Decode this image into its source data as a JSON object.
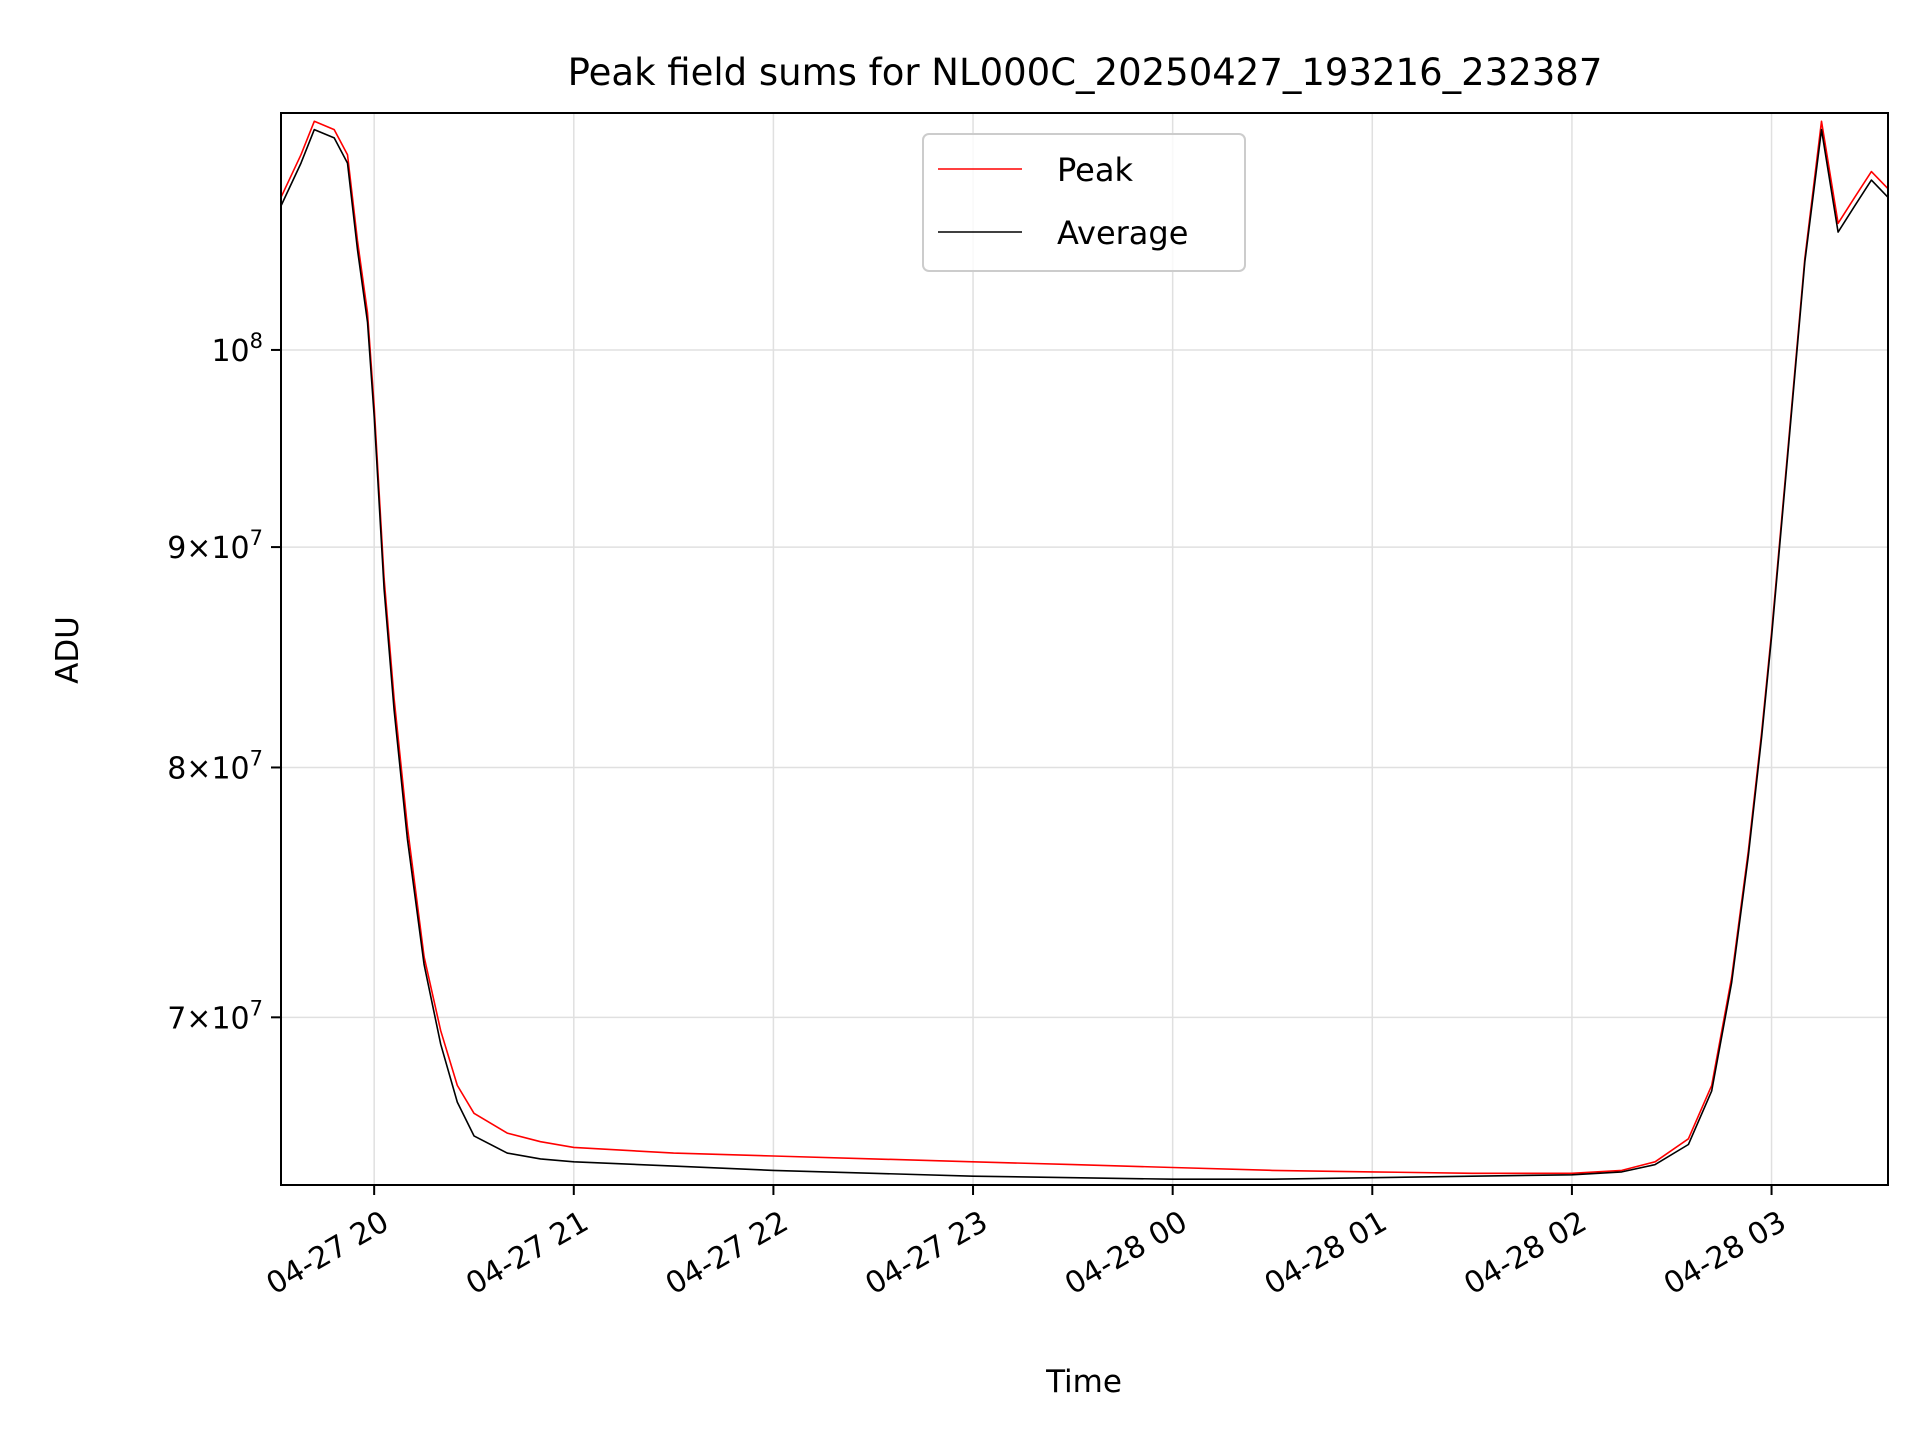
{
  "chart_data": {
    "type": "line",
    "title": "Peak field sums for NL000C_20250427_193216_232387",
    "xlabel": "Time",
    "ylabel": "ADU",
    "y_scale": "log",
    "xlim": [
      "2025-04-27 19:32",
      "2025-04-28 03:35"
    ],
    "ylim": [
      64000000,
      113500000
    ],
    "grid": true,
    "legend_position": "top-center",
    "x_tick_labels": [
      "04-27 20",
      "04-27 21",
      "04-27 22",
      "04-27 23",
      "04-28 00",
      "04-28 01",
      "04-28 02",
      "04-28 03"
    ],
    "x_ticks": [
      "2025-04-27 20:00",
      "2025-04-27 21:00",
      "2025-04-27 22:00",
      "2025-04-27 23:00",
      "2025-04-28 00:00",
      "2025-04-28 01:00",
      "2025-04-28 02:00",
      "2025-04-28 03:00"
    ],
    "y_ticks": [
      {
        "value": 70000000,
        "mantissa": "7",
        "base": "10",
        "exp": "7"
      },
      {
        "value": 80000000,
        "mantissa": "8",
        "base": "10",
        "exp": "7"
      },
      {
        "value": 90000000,
        "mantissa": "9",
        "base": "10",
        "exp": "7"
      },
      {
        "value": 100000000,
        "mantissa": "",
        "base": "10",
        "exp": "8"
      }
    ],
    "series": [
      {
        "name": "Peak",
        "color": "#ff0000",
        "x": [
          "2025-04-27 19:32",
          "2025-04-27 19:38",
          "2025-04-27 19:42",
          "2025-04-27 19:48",
          "2025-04-27 19:52",
          "2025-04-27 19:55",
          "2025-04-27 19:58",
          "2025-04-27 20:00",
          "2025-04-27 20:03",
          "2025-04-27 20:06",
          "2025-04-27 20:10",
          "2025-04-27 20:15",
          "2025-04-27 20:20",
          "2025-04-27 20:25",
          "2025-04-27 20:30",
          "2025-04-27 20:40",
          "2025-04-27 20:50",
          "2025-04-27 21:00",
          "2025-04-27 21:30",
          "2025-04-27 22:00",
          "2025-04-27 22:30",
          "2025-04-27 23:00",
          "2025-04-27 23:30",
          "2025-04-28 00:00",
          "2025-04-28 00:30",
          "2025-04-28 01:00",
          "2025-04-28 01:30",
          "2025-04-28 02:00",
          "2025-04-28 02:15",
          "2025-04-28 02:25",
          "2025-04-28 02:35",
          "2025-04-28 02:42",
          "2025-04-28 02:48",
          "2025-04-28 02:53",
          "2025-04-28 02:57",
          "2025-04-28 03:00",
          "2025-04-28 03:05",
          "2025-04-28 03:10",
          "2025-04-28 03:15",
          "2025-04-28 03:20",
          "2025-04-28 03:25",
          "2025-04-28 03:30",
          "2025-04-28 03:35"
        ],
        "values": [
          108500000,
          111000000,
          113000000,
          112500000,
          111000000,
          106000000,
          102000000,
          97000000,
          88500000,
          83000000,
          77500000,
          72300000,
          69500000,
          67500000,
          66500000,
          65800000,
          65500000,
          65300000,
          65100000,
          65000000,
          64900000,
          64800000,
          64700000,
          64600000,
          64500000,
          64450000,
          64400000,
          64400000,
          64500000,
          64800000,
          65600000,
          67500000,
          71500000,
          76500000,
          81500000,
          86000000,
          95000000,
          105000000,
          113000000,
          107000000,
          108500000,
          110000000,
          109000000
        ]
      },
      {
        "name": "Average",
        "color": "#000000",
        "x": [
          "2025-04-27 19:32",
          "2025-04-27 19:38",
          "2025-04-27 19:42",
          "2025-04-27 19:48",
          "2025-04-27 19:52",
          "2025-04-27 19:55",
          "2025-04-27 19:58",
          "2025-04-27 20:00",
          "2025-04-27 20:03",
          "2025-04-27 20:06",
          "2025-04-27 20:10",
          "2025-04-27 20:15",
          "2025-04-27 20:20",
          "2025-04-27 20:25",
          "2025-04-27 20:30",
          "2025-04-27 20:40",
          "2025-04-27 20:50",
          "2025-04-27 21:00",
          "2025-04-27 21:30",
          "2025-04-27 22:00",
          "2025-04-27 22:30",
          "2025-04-27 23:00",
          "2025-04-27 23:30",
          "2025-04-28 00:00",
          "2025-04-28 00:30",
          "2025-04-28 01:00",
          "2025-04-28 01:30",
          "2025-04-28 02:00",
          "2025-04-28 02:15",
          "2025-04-28 02:25",
          "2025-04-28 02:35",
          "2025-04-28 02:42",
          "2025-04-28 02:48",
          "2025-04-28 02:53",
          "2025-04-28 02:57",
          "2025-04-28 03:00",
          "2025-04-28 03:05",
          "2025-04-28 03:10",
          "2025-04-28 03:15",
          "2025-04-28 03:20",
          "2025-04-28 03:25",
          "2025-04-28 03:30",
          "2025-04-28 03:35"
        ],
        "values": [
          108000000,
          110500000,
          112500000,
          112000000,
          110500000,
          105500000,
          101500000,
          96500000,
          88000000,
          82500000,
          77000000,
          72000000,
          69000000,
          66900000,
          65700000,
          65100000,
          64900000,
          64800000,
          64650000,
          64500000,
          64400000,
          64300000,
          64250000,
          64200000,
          64200000,
          64250000,
          64300000,
          64350000,
          64450000,
          64700000,
          65400000,
          67300000,
          71300000,
          76300000,
          81300000,
          85800000,
          94800000,
          104800000,
          112500000,
          106500000,
          108000000,
          109500000,
          108500000
        ]
      }
    ]
  }
}
